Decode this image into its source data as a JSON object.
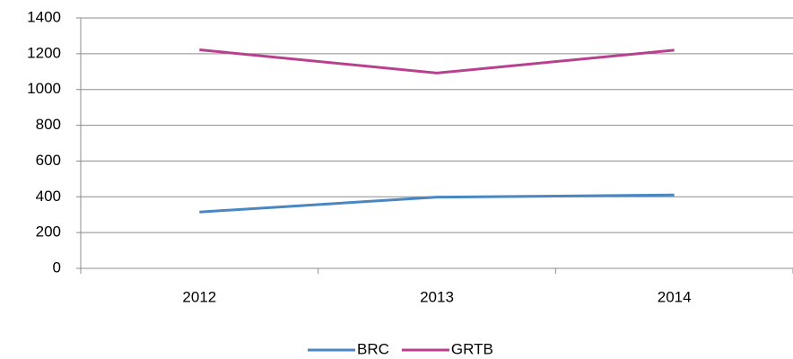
{
  "chart_data": {
    "type": "line",
    "categories": [
      "2012",
      "2013",
      "2014"
    ],
    "series": [
      {
        "name": "BRC",
        "color": "#4a86c1",
        "values": [
          315,
          398,
          410
        ]
      },
      {
        "name": "GRTB",
        "color": "#b8418f",
        "values": [
          1222,
          1092,
          1220
        ]
      }
    ],
    "ylim": [
      0,
      1400
    ],
    "yticks": [
      0,
      200,
      400,
      600,
      800,
      1000,
      1200,
      1400
    ],
    "grid": true,
    "legend": "bottom"
  }
}
